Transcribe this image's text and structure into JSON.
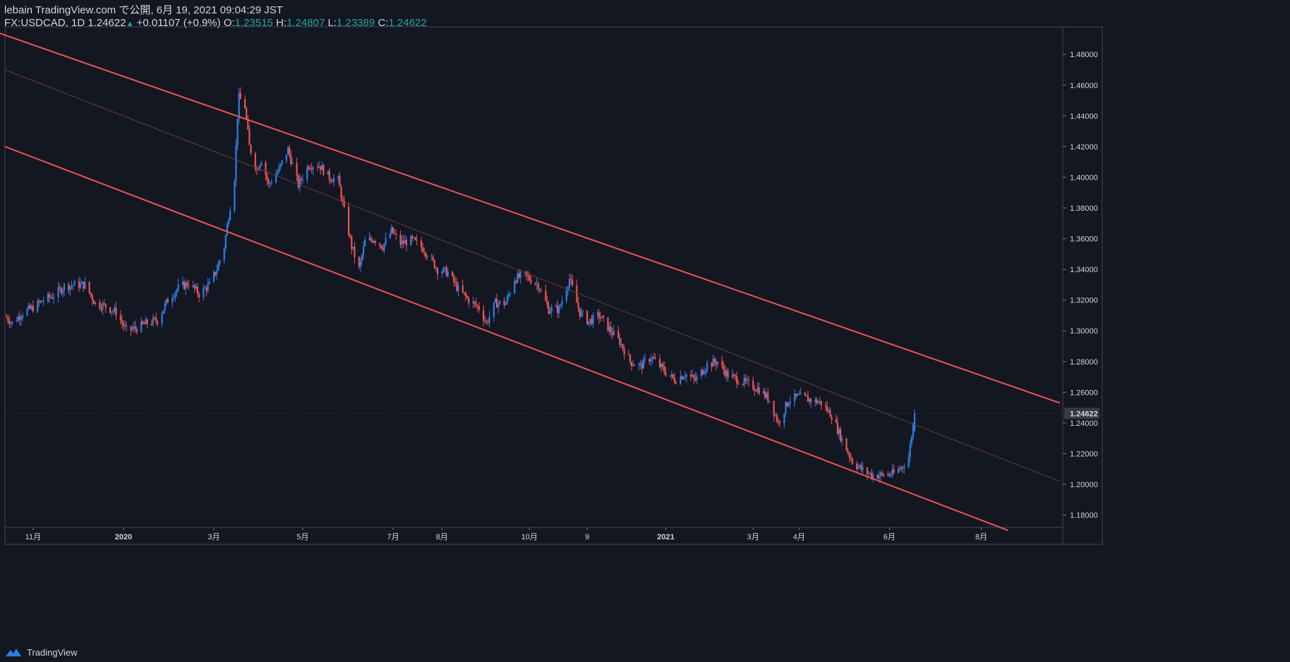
{
  "header": {
    "publisher_line": "lebain TradingView.com で公開, 6月 19, 2021 09:04:29 JST",
    "symbol": "FX:USDCAD, 1D",
    "last": "1.24622",
    "change_arrow": "▲",
    "change": "+0.01107 (+0.9%)",
    "o_label": "O:",
    "o_value": "1.23515",
    "h_label": "H:",
    "h_value": "1.24807",
    "l_label": "L:",
    "l_value": "1.23389",
    "c_label": "C:",
    "c_value": "1.24622"
  },
  "footer": {
    "brand": "TradingView",
    "logo_icon": "tradingview-cloud-icon"
  },
  "colors": {
    "background": "#131722",
    "up": "#2e7ee6",
    "down": "#ef5350",
    "channel": "#ef5350",
    "midline": "#6b3a3f",
    "axis_text": "#d1d4dc",
    "price_label_bg": "#363a45"
  },
  "chart_data": {
    "type": "candlestick",
    "symbol": "FX:USDCAD",
    "interval": "1D",
    "current_price": 1.24622,
    "ylim": [
      1.172,
      1.498
    ],
    "y_ticks": [
      1.18,
      1.2,
      1.22,
      1.24,
      1.26,
      1.28,
      1.3,
      1.32,
      1.34,
      1.36,
      1.38,
      1.4,
      1.42,
      1.44,
      1.46,
      1.48
    ],
    "y_tick_labels": [
      "1.18000",
      "1.20000",
      "1.22000",
      "1.24000",
      "1.26000",
      "1.28000",
      "1.30000",
      "1.32000",
      "1.34000",
      "1.36000",
      "1.38000",
      "1.40000",
      "1.42000",
      "1.44000",
      "1.46000",
      "1.48000"
    ],
    "current_price_label": "1.24622",
    "x_ticks": [
      {
        "label": "11月",
        "date": "2019-11-01"
      },
      {
        "label": "2020",
        "date": "2020-01-01"
      },
      {
        "label": "3月",
        "date": "2020-03-02"
      },
      {
        "label": "5月",
        "date": "2020-05-01"
      },
      {
        "label": "7月",
        "date": "2020-07-01"
      },
      {
        "label": "8月",
        "date": "2020-08-03"
      },
      {
        "label": "10月",
        "date": "2020-10-01"
      },
      {
        "label": "9",
        "date": "2020-11-09"
      },
      {
        "label": "2021",
        "date": "2021-01-01"
      },
      {
        "label": "3月",
        "date": "2021-03-01"
      },
      {
        "label": "4月",
        "date": "2021-04-01"
      },
      {
        "label": "6月",
        "date": "2021-06-01"
      },
      {
        "label": "8月",
        "date": "2021-08-02"
      }
    ],
    "xlim": [
      "2019-10-13",
      "2021-09-26"
    ],
    "anchors": [
      [
        "2019-10-14",
        1.309
      ],
      [
        "2019-10-18",
        1.305
      ],
      [
        "2019-10-25",
        1.312
      ],
      [
        "2019-11-01",
        1.315
      ],
      [
        "2019-11-08",
        1.32
      ],
      [
        "2019-11-15",
        1.323
      ],
      [
        "2019-11-22",
        1.329
      ],
      [
        "2019-11-29",
        1.33
      ],
      [
        "2019-12-06",
        1.33
      ],
      [
        "2019-12-13",
        1.318
      ],
      [
        "2019-12-20",
        1.316
      ],
      [
        "2019-12-27",
        1.312
      ],
      [
        "2020-01-03",
        1.3
      ],
      [
        "2020-01-10",
        1.302
      ],
      [
        "2020-01-17",
        1.305
      ],
      [
        "2020-01-24",
        1.307
      ],
      [
        "2020-01-31",
        1.32
      ],
      [
        "2020-02-07",
        1.328
      ],
      [
        "2020-02-14",
        1.331
      ],
      [
        "2020-02-21",
        1.324
      ],
      [
        "2020-02-28",
        1.33
      ],
      [
        "2020-03-04",
        1.34
      ],
      [
        "2020-03-09",
        1.355
      ],
      [
        "2020-03-12",
        1.375
      ],
      [
        "2020-03-16",
        1.4
      ],
      [
        "2020-03-18",
        1.44
      ],
      [
        "2020-03-19",
        1.452
      ],
      [
        "2020-03-23",
        1.446
      ],
      [
        "2020-03-26",
        1.42
      ],
      [
        "2020-03-31",
        1.405
      ],
      [
        "2020-04-03",
        1.412
      ],
      [
        "2020-04-08",
        1.395
      ],
      [
        "2020-04-15",
        1.405
      ],
      [
        "2020-04-21",
        1.418
      ],
      [
        "2020-04-28",
        1.395
      ],
      [
        "2020-05-05",
        1.408
      ],
      [
        "2020-05-12",
        1.408
      ],
      [
        "2020-05-19",
        1.4
      ],
      [
        "2020-05-25",
        1.398
      ],
      [
        "2020-05-29",
        1.378
      ],
      [
        "2020-06-03",
        1.355
      ],
      [
        "2020-06-08",
        1.34
      ],
      [
        "2020-06-12",
        1.358
      ],
      [
        "2020-06-18",
        1.36
      ],
      [
        "2020-06-24",
        1.355
      ],
      [
        "2020-06-30",
        1.365
      ],
      [
        "2020-07-06",
        1.357
      ],
      [
        "2020-07-14",
        1.359
      ],
      [
        "2020-07-22",
        1.353
      ],
      [
        "2020-07-31",
        1.34
      ],
      [
        "2020-08-07",
        1.338
      ],
      [
        "2020-08-14",
        1.327
      ],
      [
        "2020-08-21",
        1.32
      ],
      [
        "2020-08-28",
        1.315
      ],
      [
        "2020-09-02",
        1.305
      ],
      [
        "2020-09-08",
        1.318
      ],
      [
        "2020-09-15",
        1.318
      ],
      [
        "2020-09-21",
        1.334
      ],
      [
        "2020-09-28",
        1.336
      ],
      [
        "2020-10-07",
        1.33
      ],
      [
        "2020-10-14",
        1.314
      ],
      [
        "2020-10-21",
        1.314
      ],
      [
        "2020-10-28",
        1.334
      ],
      [
        "2020-11-04",
        1.312
      ],
      [
        "2020-11-10",
        1.306
      ],
      [
        "2020-11-17",
        1.31
      ],
      [
        "2020-11-24",
        1.301
      ],
      [
        "2020-12-01",
        1.293
      ],
      [
        "2020-12-08",
        1.28
      ],
      [
        "2020-12-15",
        1.277
      ],
      [
        "2020-12-22",
        1.283
      ],
      [
        "2020-12-31",
        1.274
      ],
      [
        "2021-01-07",
        1.268
      ],
      [
        "2021-01-14",
        1.272
      ],
      [
        "2021-01-21",
        1.268
      ],
      [
        "2021-01-29",
        1.278
      ],
      [
        "2021-02-05",
        1.28
      ],
      [
        "2021-02-12",
        1.271
      ],
      [
        "2021-02-19",
        1.268
      ],
      [
        "2021-02-26",
        1.265
      ],
      [
        "2021-03-05",
        1.262
      ],
      [
        "2021-03-12",
        1.255
      ],
      [
        "2021-03-18",
        1.24
      ],
      [
        "2021-03-25",
        1.255
      ],
      [
        "2021-04-01",
        1.257
      ],
      [
        "2021-04-09",
        1.255
      ],
      [
        "2021-04-16",
        1.253
      ],
      [
        "2021-04-23",
        1.245
      ],
      [
        "2021-04-30",
        1.229
      ],
      [
        "2021-05-07",
        1.215
      ],
      [
        "2021-05-14",
        1.209
      ],
      [
        "2021-05-21",
        1.206
      ],
      [
        "2021-05-28",
        1.206
      ],
      [
        "2021-06-04",
        1.207
      ],
      [
        "2021-06-10",
        1.212
      ],
      [
        "2021-06-14",
        1.218
      ],
      [
        "2021-06-16",
        1.232
      ],
      [
        "2021-06-18",
        1.246
      ]
    ],
    "channel_lines": [
      {
        "name": "upper",
        "points": [
          [
            "2019-09-21",
            1.5
          ],
          [
            "2021-09-24",
            1.253
          ]
        ]
      },
      {
        "name": "lower",
        "points": [
          [
            "2019-10-13",
            1.42
          ],
          [
            "2021-08-20",
            1.17
          ]
        ]
      },
      {
        "name": "mid",
        "points": [
          [
            "2019-10-13",
            1.47
          ],
          [
            "2021-09-24",
            1.202
          ]
        ]
      }
    ],
    "grid": false,
    "legend": "none"
  }
}
